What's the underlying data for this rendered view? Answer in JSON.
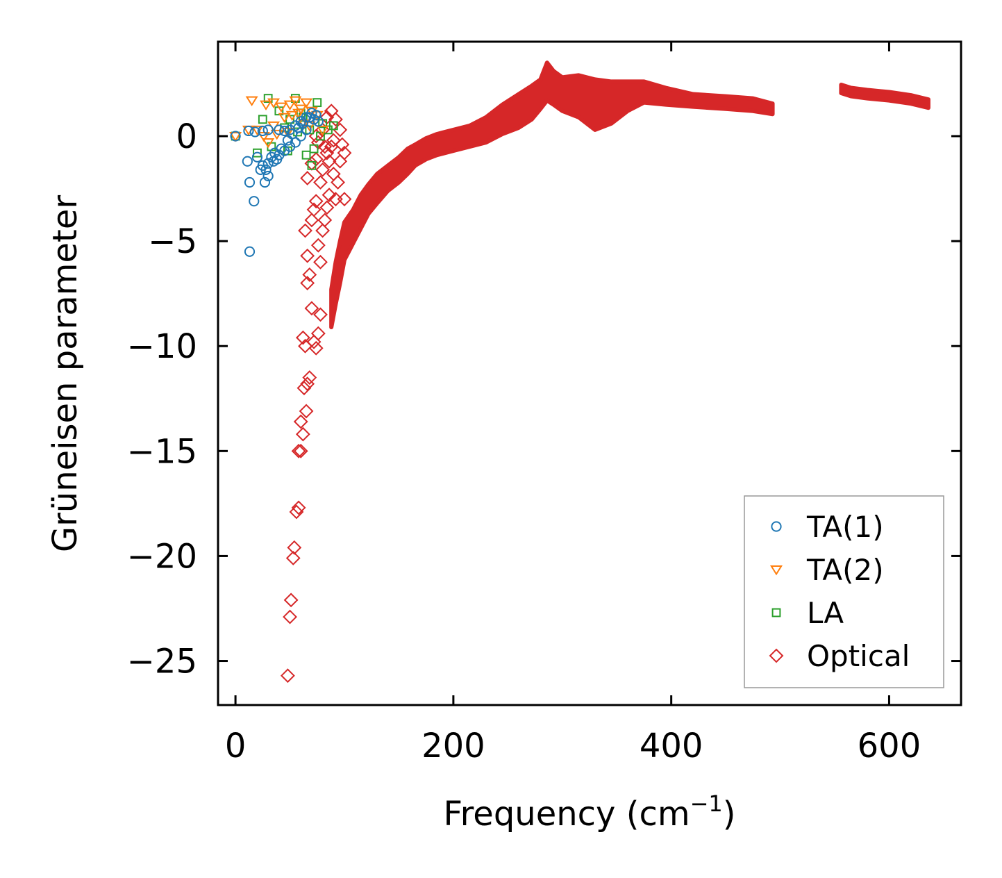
{
  "chart_data": {
    "type": "scatter",
    "title": "",
    "xlabel": "Frequency (cm",
    "xlabel_superscript": "−1",
    "xlabel_suffix": ")",
    "ylabel": "Grüneisen parameter",
    "xlim": [
      -16,
      666
    ],
    "ylim": [
      -27.1,
      4.5
    ],
    "xticks": [
      0,
      200,
      400,
      600
    ],
    "xtick_labels": [
      "0",
      "200",
      "400",
      "600"
    ],
    "yticks": [
      0,
      -5,
      -10,
      -15,
      -20,
      -25
    ],
    "ytick_labels": [
      "0",
      "−5",
      "−10",
      "−15",
      "−20",
      "−25"
    ],
    "grid": false,
    "legend_position": "lower-right",
    "series": [
      {
        "name": "TA(1)",
        "marker": "circle",
        "color": "#1f77b4",
        "points": [
          [
            0,
            0
          ],
          [
            12,
            0.25
          ],
          [
            18,
            0.2
          ],
          [
            25,
            0.25
          ],
          [
            30,
            0.3
          ],
          [
            40,
            0.3
          ],
          [
            45,
            0.25
          ],
          [
            50,
            0.3
          ],
          [
            55,
            0.5
          ],
          [
            60,
            0.7
          ],
          [
            65,
            0.9
          ],
          [
            70,
            1.1
          ],
          [
            72,
            0.8
          ],
          [
            11,
            -1.2
          ],
          [
            20,
            -1.0
          ],
          [
            25,
            -1.4
          ],
          [
            28,
            -1.6
          ],
          [
            30,
            -1.3
          ],
          [
            35,
            -1.2
          ],
          [
            38,
            -1.1
          ],
          [
            40,
            -0.9
          ],
          [
            45,
            -0.7
          ],
          [
            50,
            -0.5
          ],
          [
            55,
            -0.3
          ],
          [
            60,
            0
          ],
          [
            65,
            0.3
          ],
          [
            13,
            -2.2
          ],
          [
            27,
            -2.2
          ],
          [
            30,
            -1.9
          ],
          [
            17,
            -3.1
          ],
          [
            13,
            -5.5
          ],
          [
            42,
            -0.6
          ],
          [
            48,
            -0.2
          ],
          [
            52,
            0.1
          ],
          [
            58,
            0.4
          ],
          [
            62,
            0.6
          ],
          [
            68,
            0.9
          ],
          [
            74,
            1.0
          ],
          [
            76,
            0.7
          ],
          [
            36,
            -0.8
          ],
          [
            33,
            -1.0
          ],
          [
            23,
            -1.6
          ]
        ]
      },
      {
        "name": "TA(2)",
        "marker": "triangle-down",
        "color": "#ff7f0e",
        "points": [
          [
            0,
            0
          ],
          [
            12,
            0.3
          ],
          [
            15,
            1.7
          ],
          [
            28,
            1.5
          ],
          [
            35,
            1.6
          ],
          [
            42,
            1.4
          ],
          [
            50,
            1.5
          ],
          [
            55,
            1.7
          ],
          [
            60,
            1.3
          ],
          [
            65,
            1.6
          ],
          [
            70,
            1.2
          ],
          [
            75,
            1.0
          ],
          [
            30,
            -0.3
          ],
          [
            20,
            0.3
          ],
          [
            35,
            0.5
          ],
          [
            45,
            0.9
          ],
          [
            52,
            1.0
          ],
          [
            58,
            1.1
          ],
          [
            63,
            0.6
          ],
          [
            68,
            0.5
          ],
          [
            48,
            0.2
          ],
          [
            38,
            0.1
          ],
          [
            26,
            0.0
          ],
          [
            80,
            0.3
          ]
        ]
      },
      {
        "name": "LA",
        "marker": "square",
        "color": "#2ca02c",
        "points": [
          [
            0,
            0
          ],
          [
            20,
            -0.8
          ],
          [
            25,
            0.8
          ],
          [
            30,
            1.8
          ],
          [
            40,
            1.2
          ],
          [
            45,
            0.4
          ],
          [
            50,
            0.8
          ],
          [
            55,
            1.8
          ],
          [
            60,
            1.1
          ],
          [
            65,
            -0.9
          ],
          [
            70,
            -1.4
          ],
          [
            75,
            1.6
          ],
          [
            80,
            0.6
          ],
          [
            85,
            0.3
          ],
          [
            90,
            0.5
          ],
          [
            33,
            -0.5
          ],
          [
            48,
            -0.7
          ],
          [
            57,
            0.2
          ],
          [
            62,
            0.9
          ],
          [
            72,
            -0.6
          ],
          [
            78,
            0.0
          ],
          [
            68,
            0.3
          ]
        ]
      },
      {
        "name": "Optical",
        "marker": "diamond",
        "color": "#d62728",
        "points": [
          [
            48,
            -25.7
          ],
          [
            50,
            -22.9
          ],
          [
            51,
            -22.1
          ],
          [
            53,
            -20.1
          ],
          [
            54,
            -19.6
          ],
          [
            56,
            -17.9
          ],
          [
            58,
            -17.7
          ],
          [
            58,
            -15.0
          ],
          [
            60,
            -15.0
          ],
          [
            60,
            -13.6
          ],
          [
            62,
            -14.2
          ],
          [
            63,
            -12.0
          ],
          [
            65,
            -13.1
          ],
          [
            66,
            -11.8
          ],
          [
            68,
            -11.5
          ],
          [
            62,
            -9.6
          ],
          [
            64,
            -10.0
          ],
          [
            70,
            -8.2
          ],
          [
            72,
            -9.8
          ],
          [
            74,
            -10.1
          ],
          [
            76,
            -9.4
          ],
          [
            78,
            -8.5
          ],
          [
            66,
            -7.0
          ],
          [
            68,
            -6.6
          ],
          [
            64,
            -4.5
          ],
          [
            66,
            -5.7
          ],
          [
            70,
            -4.0
          ],
          [
            72,
            -3.5
          ],
          [
            74,
            -3.1
          ],
          [
            76,
            -5.2
          ],
          [
            78,
            -6.0
          ],
          [
            80,
            -4.5
          ],
          [
            82,
            -4.0
          ],
          [
            84,
            -3.4
          ],
          [
            86,
            -2.8
          ],
          [
            66,
            -2.0
          ],
          [
            70,
            -1.3
          ],
          [
            74,
            -1.1
          ],
          [
            78,
            -2.2
          ],
          [
            80,
            -1.6
          ],
          [
            84,
            -0.8
          ],
          [
            88,
            -0.5
          ],
          [
            90,
            -1.8
          ],
          [
            92,
            -3.0
          ],
          [
            94,
            -2.2
          ],
          [
            96,
            -1.2
          ],
          [
            98,
            -0.4
          ],
          [
            100,
            -0.8
          ],
          [
            100,
            -3.0
          ],
          [
            76,
            -0.3
          ],
          [
            80,
            0.3
          ],
          [
            84,
            0.9
          ],
          [
            88,
            1.2
          ],
          [
            92,
            0.8
          ],
          [
            96,
            0.3
          ],
          [
            90,
            -0.2
          ],
          [
            74,
            0.0
          ],
          [
            82,
            -0.5
          ],
          [
            86,
            -1.2
          ]
        ]
      }
    ],
    "optical_band": {
      "ridge": [
        [
          88,
          -8.2
        ],
        [
          92,
          -7.0
        ],
        [
          96,
          -6.0
        ],
        [
          100,
          -5.0
        ],
        [
          108,
          -4.3
        ],
        [
          115,
          -3.6
        ],
        [
          122,
          -3.0
        ],
        [
          130,
          -2.5
        ],
        [
          140,
          -2.0
        ],
        [
          150,
          -1.6
        ],
        [
          158,
          -1.2
        ],
        [
          165,
          -0.9
        ],
        [
          175,
          -0.6
        ],
        [
          185,
          -0.4
        ],
        [
          200,
          -0.2
        ],
        [
          215,
          0.0
        ],
        [
          230,
          0.3
        ],
        [
          245,
          0.8
        ],
        [
          260,
          1.2
        ],
        [
          272,
          1.6
        ],
        [
          280,
          2.0
        ],
        [
          286,
          2.6
        ],
        [
          292,
          2.3
        ],
        [
          300,
          2.0
        ],
        [
          315,
          1.9
        ],
        [
          330,
          1.5
        ],
        [
          345,
          1.6
        ],
        [
          360,
          1.9
        ],
        [
          375,
          2.1
        ],
        [
          395,
          1.9
        ],
        [
          420,
          1.7
        ],
        [
          450,
          1.6
        ],
        [
          475,
          1.5
        ],
        [
          493,
          1.3
        ]
      ],
      "ridge_widths": [
        0.9,
        1.0,
        1.0,
        0.9,
        0.8,
        0.8,
        0.7,
        0.7,
        0.6,
        0.6,
        0.6,
        0.5,
        0.5,
        0.5,
        0.5,
        0.5,
        0.6,
        0.7,
        0.8,
        0.8,
        0.7,
        0.9,
        0.8,
        0.8,
        1.0,
        1.2,
        1.0,
        0.7,
        0.5,
        0.4,
        0.3,
        0.3,
        0.3,
        0.25
      ],
      "segment2": [
        [
          556,
          2.25
        ],
        [
          565,
          2.1
        ],
        [
          580,
          2.0
        ],
        [
          600,
          1.9
        ],
        [
          620,
          1.75
        ],
        [
          636,
          1.55
        ]
      ],
      "segment2_widths": [
        0.2,
        0.2,
        0.2,
        0.2,
        0.2,
        0.2
      ]
    }
  }
}
